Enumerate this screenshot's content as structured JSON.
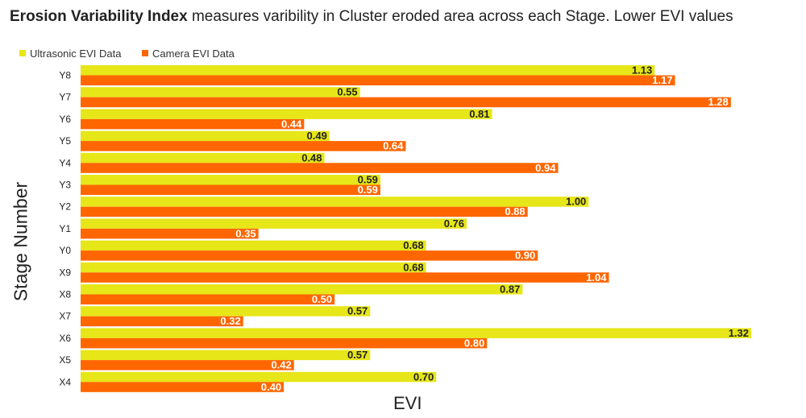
{
  "title": {
    "bold": "Erosion Variability Index",
    "rest": " measures varibility in Cluster eroded area across each Stage. Lower EVI values"
  },
  "chart_data": {
    "type": "bar",
    "orientation": "horizontal",
    "title": "Erosion Variability Index measures varibility in Cluster eroded area across each Stage. Lower EVI values",
    "xlabel": "EVI",
    "ylabel": "Stage Number",
    "xlim": [
      0,
      1.32
    ],
    "grid": false,
    "legend_position": "top-left",
    "categories": [
      "Y8",
      "Y7",
      "Y6",
      "Y5",
      "Y4",
      "Y3",
      "Y2",
      "Y1",
      "Y0",
      "X9",
      "X8",
      "X7",
      "X6",
      "X5",
      "X4"
    ],
    "series": [
      {
        "name": "Ultrasonic EVI Data",
        "color": "#e6e619",
        "values": [
          1.13,
          0.55,
          0.81,
          0.49,
          0.48,
          0.59,
          1.0,
          0.76,
          0.68,
          0.68,
          0.87,
          0.57,
          1.32,
          0.57,
          0.7
        ],
        "labels": [
          "1.13",
          "0.55",
          "0.81",
          "0.49",
          "0.48",
          "0.59",
          "1.00",
          "0.76",
          "0.68",
          "0.68",
          "0.87",
          "0.57",
          "1.32",
          "0.57",
          "0.70"
        ]
      },
      {
        "name": "Camera EVI Data",
        "color": "#ff6600",
        "values": [
          1.17,
          1.28,
          0.44,
          0.64,
          0.94,
          0.59,
          0.88,
          0.35,
          0.9,
          1.04,
          0.5,
          0.32,
          0.8,
          0.42,
          0.4
        ],
        "labels": [
          "1.17",
          "1.28",
          "0.44",
          "0.64",
          "0.94",
          "0.59",
          "0.88",
          "0.35",
          "0.90",
          "1.04",
          "0.50",
          "0.32",
          "0.80",
          "0.42",
          "0.40"
        ]
      }
    ]
  }
}
